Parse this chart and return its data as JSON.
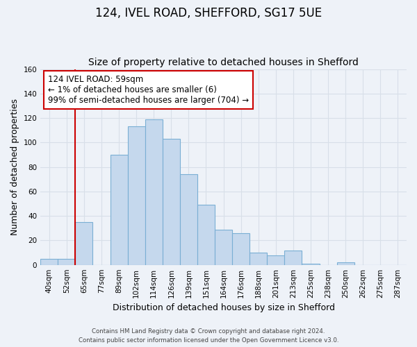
{
  "title": "124, IVEL ROAD, SHEFFORD, SG17 5UE",
  "subtitle": "Size of property relative to detached houses in Shefford",
  "xlabel": "Distribution of detached houses by size in Shefford",
  "ylabel": "Number of detached properties",
  "bin_labels": [
    "40sqm",
    "52sqm",
    "65sqm",
    "77sqm",
    "89sqm",
    "102sqm",
    "114sqm",
    "126sqm",
    "139sqm",
    "151sqm",
    "164sqm",
    "176sqm",
    "188sqm",
    "201sqm",
    "213sqm",
    "225sqm",
    "238sqm",
    "250sqm",
    "262sqm",
    "275sqm",
    "287sqm"
  ],
  "bar_heights": [
    5,
    5,
    35,
    0,
    90,
    113,
    119,
    103,
    74,
    49,
    29,
    26,
    10,
    8,
    12,
    1,
    0,
    2,
    0,
    0,
    0
  ],
  "bar_color": "#c5d8ed",
  "bar_edge_color": "#7aafd4",
  "vline_x_idx": 2,
  "vline_color": "#cc0000",
  "annotation_text": "124 IVEL ROAD: 59sqm\n← 1% of detached houses are smaller (6)\n99% of semi-detached houses are larger (704) →",
  "annotation_box_color": "#ffffff",
  "annotation_box_edge_color": "#cc0000",
  "ylim": [
    0,
    160
  ],
  "yticks": [
    0,
    20,
    40,
    60,
    80,
    100,
    120,
    140,
    160
  ],
  "background_color": "#eef2f8",
  "grid_color": "#d8dfe8",
  "footer_line1": "Contains HM Land Registry data © Crown copyright and database right 2024.",
  "footer_line2": "Contains public sector information licensed under the Open Government Licence v3.0.",
  "title_fontsize": 12,
  "subtitle_fontsize": 10,
  "axis_label_fontsize": 9,
  "tick_fontsize": 7.5,
  "annotation_fontsize": 8.5
}
